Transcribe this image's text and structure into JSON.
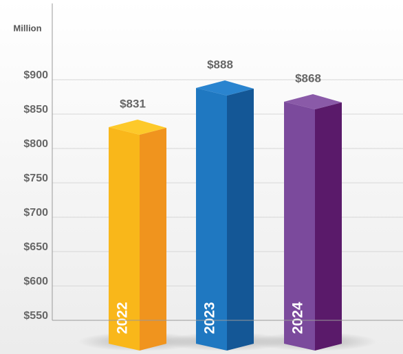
{
  "chart_data": {
    "type": "bar3d",
    "y_axis_label": "Million",
    "categories": [
      "2022",
      "2023",
      "2024"
    ],
    "values": [
      831,
      888,
      868
    ],
    "value_labels": [
      "$831",
      "$888",
      "$868"
    ],
    "colors": [
      "#f9b71a",
      "#1f78c1",
      "#7b4a9c"
    ],
    "side_colors": [
      "#f0941e",
      "#145796",
      "#5a1a6a"
    ],
    "top_colors": [
      "#fdc92a",
      "#2a84cf",
      "#8a5aa8"
    ],
    "ylim": [
      550,
      1000
    ],
    "yticks": [
      {
        "value": 550,
        "label": "$550"
      },
      {
        "value": 600,
        "label": "$600"
      },
      {
        "value": 650,
        "label": "$650"
      },
      {
        "value": 700,
        "label": "$700"
      },
      {
        "value": 750,
        "label": "$750"
      },
      {
        "value": 800,
        "label": "$800"
      },
      {
        "value": 850,
        "label": "$850"
      },
      {
        "value": 900,
        "label": "$900"
      }
    ],
    "grid": true
  }
}
